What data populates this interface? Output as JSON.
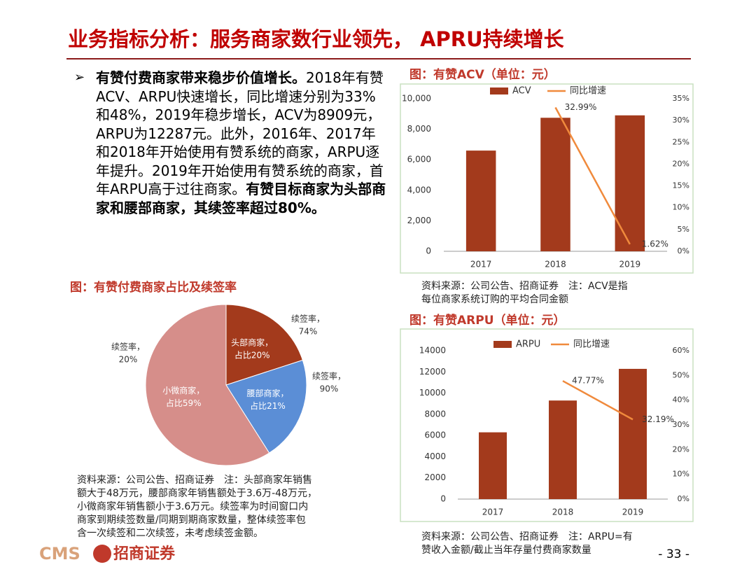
{
  "title": "业务指标分析：服务商家数行业领先，  APRU持续增长",
  "bullet": [
    {
      "text": "有赞付费商家带来稳步价值增长。",
      "bold": true
    },
    {
      "text": "2018年有赞ACV、ARPU快速增长，同比增速分别为33%和48%，2019年稳步增长，ACV为8909元，ARPU为12287元。此外，2016年、2017年和2018年开始使用有赞系统的商家，ARPU逐年提升。2019年开始使用有赞系统的商家，首年ARPU高于过往商家。",
      "bold": false
    },
    {
      "text": "有赞目标商家为头部商家和腰部商家，其续签率超过80%。",
      "bold": true
    }
  ],
  "chart_data": [
    {
      "type": "pie",
      "title": "图：有赞付费商家占比及续签率",
      "categories": [
        "头部商家，",
        "腰部商家，",
        "小微商家，"
      ],
      "values": [
        20,
        21,
        59
      ],
      "value_labels": [
        "占比20%",
        "占比21%",
        "占比59%"
      ],
      "colors": [
        "#a33a1c",
        "#5b8ed6",
        "#d68e8a"
      ],
      "annotations": [
        [
          "续签率，",
          "74%"
        ],
        [
          "续签率，",
          "90%"
        ],
        [
          "续签率，",
          "20%"
        ]
      ],
      "source": [
        "资料来源：公司公告、招商证券　注：头部商家年销售",
        "额大于48万元，腰部商家年销售额处于3.6万-48万元，",
        "小微商家年销售额小于3.6万元。续签率为时间窗口内",
        "商家到期续签数量/同期到期商家数量，整体续签率包",
        "含一次续签和二次续签，未考虑续签金额。"
      ]
    },
    {
      "type": "bar",
      "title": "图：有赞ACV（单位：元）",
      "categories": [
        "2017",
        "2018",
        "2019"
      ],
      "series": [
        {
          "name": "ACV",
          "color": "#a33a1c",
          "values": [
            6600,
            8750,
            8909
          ]
        },
        {
          "name": "同比增速",
          "type": "line",
          "axis": "y2",
          "color": "#f08a3c",
          "values": [
            null,
            32.99,
            1.62
          ],
          "value_labels": [
            null,
            "32.99%",
            "1.62%"
          ]
        }
      ],
      "ylim": [
        0,
        10000
      ],
      "yticks": [
        0,
        {
          "value": 2000,
          "label": "2,000"
        },
        {
          "value": 4000,
          "label": "4,000"
        },
        {
          "value": 6000,
          "label": "6,000"
        },
        {
          "value": 8000,
          "label": "8,000"
        },
        {
          "value": 10000,
          "label": "10,000"
        }
      ],
      "y2lim": [
        0,
        35
      ],
      "y2ticks": [
        {
          "value": 0,
          "label": "0%"
        },
        {
          "value": 5,
          "label": "5%"
        },
        {
          "value": 10,
          "label": "10%"
        },
        {
          "value": 15,
          "label": "15%"
        },
        {
          "value": 20,
          "label": "20%"
        },
        {
          "value": 25,
          "label": "25%"
        },
        {
          "value": 30,
          "label": "30%"
        },
        {
          "value": 35,
          "label": "35%"
        }
      ],
      "source": [
        "资料来源：公司公告、招商证券　注：ACV是指",
        "每位商家系统订购的平均合同金额"
      ]
    },
    {
      "type": "bar",
      "title": "图：有赞ARPU（单位：元）",
      "categories": [
        "2017",
        "2018",
        "2019"
      ],
      "series": [
        {
          "name": "ARPU",
          "color": "#a33a1c",
          "values": [
            6300,
            9300,
            12287
          ]
        },
        {
          "name": "同比增速",
          "type": "line",
          "axis": "y2",
          "color": "#f08a3c",
          "values": [
            null,
            47.77,
            32.19
          ],
          "value_labels": [
            null,
            "47.77%",
            "32.19%"
          ]
        }
      ],
      "ylim": [
        0,
        14000
      ],
      "yticks": [
        0,
        2000,
        4000,
        6000,
        8000,
        10000,
        12000,
        14000
      ],
      "y2lim": [
        0,
        60
      ],
      "y2ticks": [
        {
          "value": 0,
          "label": "0%"
        },
        {
          "value": 10,
          "label": "10%"
        },
        {
          "value": 20,
          "label": "20%"
        },
        {
          "value": 30,
          "label": "30%"
        },
        {
          "value": 40,
          "label": "40%"
        },
        {
          "value": 50,
          "label": "50%"
        },
        {
          "value": 60,
          "label": "60%"
        }
      ],
      "source": [
        "资料来源：公司公告、招商证券　注：ARPU=有",
        "赞收入金额/截止当年存量付费商家数量"
      ]
    }
  ],
  "footer": {
    "logo": "CMS",
    "brand": "招商证券",
    "page": "- 33 -"
  }
}
